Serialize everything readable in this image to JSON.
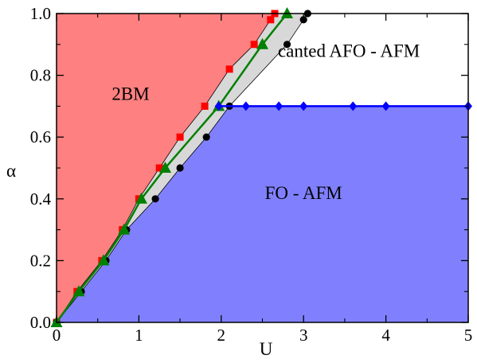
{
  "chart_data": {
    "type": "scatter",
    "title": "",
    "xlabel": "U",
    "ylabel": "α",
    "xlim": [
      0,
      5
    ],
    "ylim": [
      0,
      1.0
    ],
    "grid": false,
    "xticks": [
      "0",
      "1",
      "2",
      "3",
      "4",
      "5"
    ],
    "yticks": [
      "0.0",
      "0.2",
      "0.4",
      "0.6",
      "0.8",
      "1.0"
    ],
    "regions": [
      {
        "label": "2BM",
        "color": "#ff8080",
        "at": {
          "x": 0.9,
          "y": 0.72
        }
      },
      {
        "label": "canted AFO - AFM",
        "color": "#ffffff",
        "at": {
          "x": 3.55,
          "y": 0.86
        }
      },
      {
        "label": "FO - AFM",
        "color": "#8080ff",
        "at": {
          "x": 3.0,
          "y": 0.4
        }
      }
    ],
    "crossover_band_color": "#d8d8d8",
    "series": [
      {
        "marker": "square",
        "color": "#ff0000",
        "line": false,
        "x": [
          0,
          0.25,
          0.55,
          0.8,
          1.0,
          1.25,
          1.5,
          1.8,
          2.1,
          2.4,
          2.6,
          2.65
        ],
        "y": [
          0,
          0.1,
          0.2,
          0.3,
          0.4,
          0.5,
          0.6,
          0.7,
          0.82,
          0.9,
          0.98,
          1.0
        ]
      },
      {
        "marker": "circle",
        "color": "#000000",
        "line": false,
        "x": [
          0,
          0.3,
          0.6,
          0.85,
          1.2,
          1.5,
          1.82,
          2.1,
          2.8,
          3.0,
          3.05
        ],
        "y": [
          0,
          0.1,
          0.2,
          0.3,
          0.4,
          0.5,
          0.6,
          0.7,
          0.9,
          0.98,
          1.0
        ]
      },
      {
        "marker": "triangle",
        "color": "#008000",
        "line": true,
        "x": [
          0,
          0.27,
          0.57,
          0.82,
          1.03,
          1.32,
          1.97,
          2.5,
          2.8
        ],
        "y": [
          0,
          0.1,
          0.2,
          0.3,
          0.4,
          0.5,
          0.7,
          0.9,
          1.0
        ]
      },
      {
        "marker": "diamond",
        "color": "#0000ff",
        "line": true,
        "x": [
          1.97,
          2.3,
          2.7,
          3.0,
          3.6,
          4.0,
          5.0
        ],
        "y": [
          0.7,
          0.7,
          0.7,
          0.7,
          0.7,
          0.7,
          0.7
        ]
      }
    ]
  }
}
